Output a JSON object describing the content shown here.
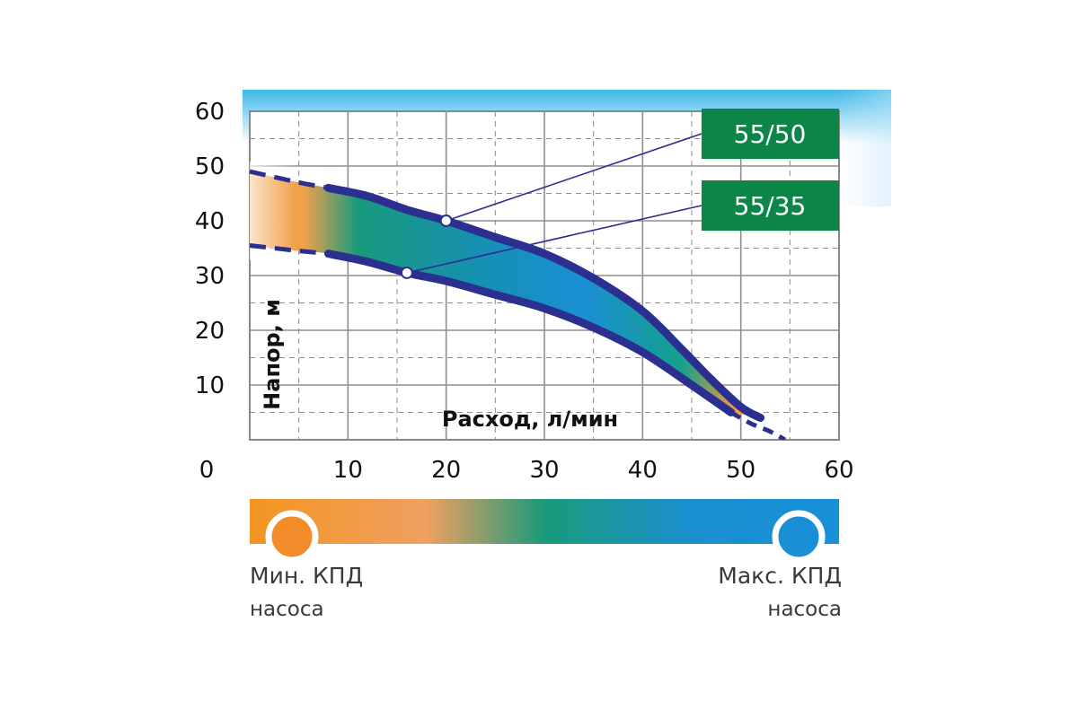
{
  "chart_data": {
    "type": "area",
    "xlabel": "Расход, л/мин",
    "ylabel": "Напор, м",
    "xlim": [
      0,
      60
    ],
    "ylim": [
      0,
      60
    ],
    "x_ticks": [
      "0",
      "10",
      "20",
      "30",
      "40",
      "50",
      "60"
    ],
    "y_ticks": [
      "10",
      "20",
      "30",
      "40",
      "50",
      "60"
    ],
    "grid": true,
    "series": [
      {
        "name": "55/50",
        "x": [
          0,
          5,
          8,
          12,
          16,
          20,
          25,
          30,
          35,
          40,
          44,
          47,
          50,
          52
        ],
        "y": [
          49,
          47,
          46,
          44.5,
          42,
          40,
          37,
          34,
          29.5,
          23.5,
          16.5,
          11,
          6,
          4
        ]
      },
      {
        "name": "55/35",
        "x": [
          0,
          5,
          8,
          12,
          16,
          20,
          25,
          30,
          35,
          40,
          45,
          49
        ],
        "y": [
          35.5,
          34.5,
          34,
          32.5,
          30.5,
          29,
          26.5,
          24,
          20.5,
          16,
          10,
          5
        ]
      }
    ],
    "tail": {
      "x": [
        49,
        51,
        53,
        54.5
      ],
      "y": [
        5,
        3,
        1.5,
        0
      ]
    },
    "markers": [
      {
        "series": "55/50",
        "x": 20,
        "y": 40
      },
      {
        "series": "55/35",
        "x": 16,
        "y": 30.5
      }
    ],
    "annotations": [
      {
        "text": "55/50",
        "series": "55/50"
      },
      {
        "text": "55/35",
        "series": "55/35"
      }
    ],
    "legend": {
      "min_label": "Мин. КПД",
      "min_sub": "насоса",
      "max_label": "Макс. КПД",
      "max_sub": "насоса"
    }
  },
  "colors": {
    "curve": "#2b2f8f",
    "grid": "#8e8e8e",
    "badge": "#0c8549",
    "efficiency_low": "#f0902e",
    "efficiency_mid": "#139878",
    "efficiency_high": "#1a8fd4",
    "top_glow": "#3fb8ea"
  }
}
